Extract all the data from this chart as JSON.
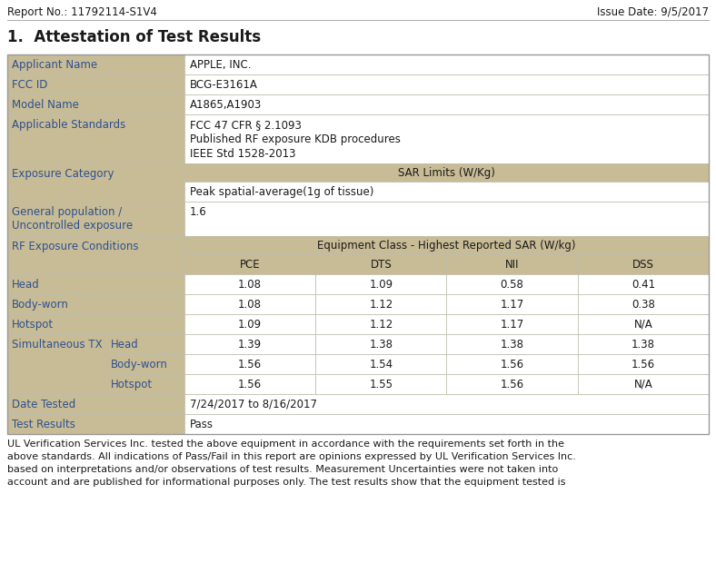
{
  "report_no": "Report No.: 11792114-S1V4",
  "issue_date": "Issue Date: 9/5/2017",
  "section_title": "1.  Attestation of Test Results",
  "tan": "#C8BC96",
  "white": "#FFFFFF",
  "blue": "#2E5090",
  "black": "#1A1A1A",
  "border": "#AAAAAA",
  "footnote": "UL Verification Services Inc. tested the above equipment in accordance with the requirements set forth in the above standards. All indications of Pass/Fail in this report are opinions expressed by UL Verification Services Inc. based on interpretations and/or observations of test results. Measurement Uncertainties were not taken into account and are published for informational purposes only. The test results show that the equipment tested is"
}
